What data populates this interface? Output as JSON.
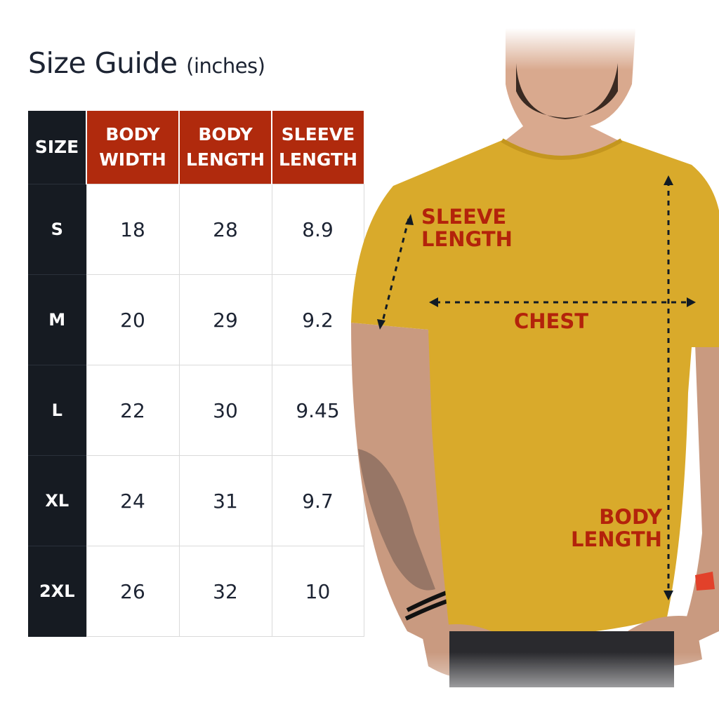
{
  "title": {
    "main": "Size Guide",
    "unit": "(inches)"
  },
  "table": {
    "headers": [
      {
        "line1": "SIZE",
        "line2": ""
      },
      {
        "line1": "BODY",
        "line2": "WIDTH"
      },
      {
        "line1": "BODY",
        "line2": "LENGTH"
      },
      {
        "line1": "SLEEVE",
        "line2": "LENGTH"
      }
    ],
    "rows": [
      {
        "size": "S",
        "body_width": "18",
        "body_length": "28",
        "sleeve_length": "8.9"
      },
      {
        "size": "M",
        "body_width": "20",
        "body_length": "29",
        "sleeve_length": "9.2"
      },
      {
        "size": "L",
        "body_width": "22",
        "body_length": "30",
        "sleeve_length": "9.45"
      },
      {
        "size": "XL",
        "body_width": "24",
        "body_length": "31",
        "sleeve_length": "9.7"
      },
      {
        "size": "2XL",
        "body_width": "26",
        "body_length": "32",
        "sleeve_length": "10"
      }
    ]
  },
  "diagram": {
    "sleeve_label": [
      "SLEEVE",
      "LENGTH"
    ],
    "chest_label": "CHEST",
    "body_label": [
      "BODY",
      "LENGTH"
    ]
  },
  "colors": {
    "header_red": "#b02a0d",
    "size_col": "#161b22",
    "shirt": "#d9aa2b",
    "label_red": "#b3230b"
  }
}
